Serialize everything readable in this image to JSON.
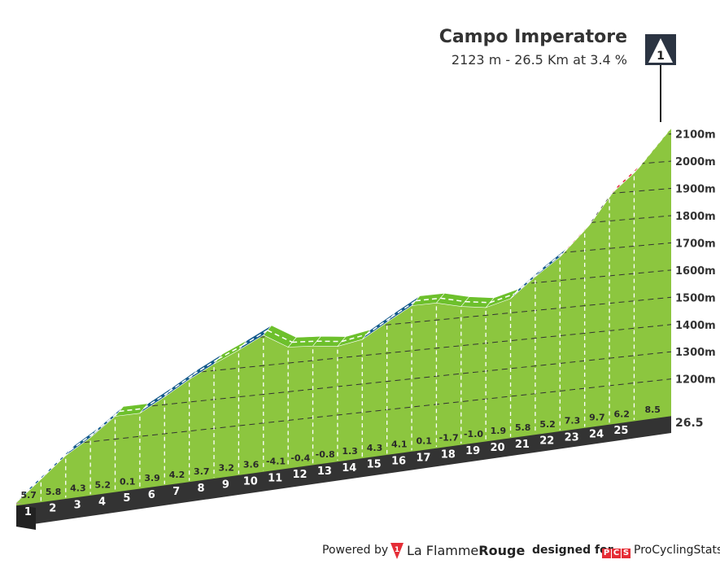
{
  "header": {
    "title": "Campo Imperatore",
    "subtitle": "2123 m - 26.5 Km at 3.4 %"
  },
  "climb_badge": {
    "label": "1"
  },
  "footer": {
    "powered_by": "Powered by",
    "lfr_brand_a": "La Flamme",
    "lfr_brand_b": "Rouge",
    "lfr_icon_label": "1",
    "designed_for": "designed for",
    "pcs_letters": [
      "P",
      "C",
      "S"
    ],
    "pcs_name": "ProCyclingStats",
    "brand_red": "#e52d36"
  },
  "colors": {
    "fill": "#8cc63f",
    "grade_0_3": "#6dc02c",
    "grade_3_6": "#145a8c",
    "grade_6_9": "#e0263b",
    "grade_9_plus": "#111111",
    "base": "#333333",
    "start_face": "#b0a090"
  },
  "chart_data": {
    "type": "area",
    "title": "Campo Imperatore",
    "subtitle": "2123 m - 26.5 Km at 3.4 %",
    "x_unit": "km",
    "distance_end_label": "26.5",
    "xlim": [
      0,
      26.5
    ],
    "ylim": [
      1100,
      2150
    ],
    "y_ticks": [
      1200,
      1300,
      1400,
      1500,
      1600,
      1700,
      1800,
      1900,
      2000,
      2100
    ],
    "y_tick_labels": [
      "1200m",
      "1300m",
      "1400m",
      "1500m",
      "1600m",
      "1700m",
      "1800m",
      "1900m",
      "2000m",
      "2100m"
    ],
    "km_labels": [
      "1",
      "2",
      "3",
      "4",
      "5",
      "6",
      "7",
      "8",
      "9",
      "10",
      "11",
      "12",
      "13",
      "14",
      "15",
      "16",
      "17",
      "18",
      "19",
      "20",
      "21",
      "22",
      "23",
      "24",
      "25"
    ],
    "gradient_labels": [
      "5.7",
      "5.8",
      "4.3",
      "5.2",
      "0.1",
      "3.9",
      "4.2",
      "3.7",
      "3.2",
      "3.6",
      "-4.1",
      "-0.4",
      "-0.8",
      "1.3",
      "4.3",
      "4.1",
      "0.1",
      "-1.7",
      "-1.0",
      "1.9",
      "5.8",
      "5.2",
      "7.3",
      "9.7",
      "6.2",
      "8.5"
    ],
    "gradients_pct": [
      5.7,
      5.8,
      4.3,
      5.2,
      0.1,
      3.9,
      4.2,
      3.7,
      3.2,
      3.6,
      -4.1,
      -0.4,
      -0.8,
      1.3,
      4.3,
      4.1,
      0.1,
      -1.7,
      -1.0,
      1.9,
      5.8,
      5.2,
      7.3,
      9.7,
      6.2,
      8.5
    ],
    "start_elevation": 1022,
    "finish_elevation": 2123,
    "grid": true
  }
}
